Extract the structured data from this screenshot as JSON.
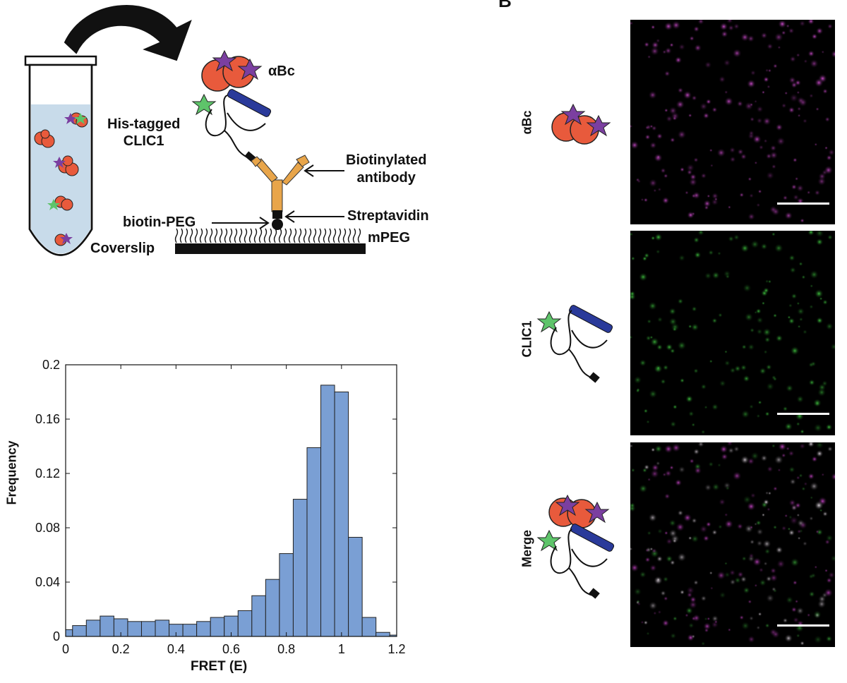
{
  "panel_letter": "B",
  "schematic": {
    "labels": {
      "alpha_bc": "αBc",
      "his_tagged_line1": "His-tagged",
      "his_tagged_line2": "CLIC1",
      "biotinylated_line1": "Biotinylated",
      "biotinylated_line2": "antibody",
      "streptavidin": "Streptavidin",
      "biotin_peg": "biotin-PEG",
      "mpeg": "mPEG",
      "coverslip": "Coverslip"
    }
  },
  "images": {
    "row_labels": [
      "αBc",
      "CLIC1",
      "Merge"
    ],
    "colors": {
      "magenta": "#d050d0",
      "green": "#40d040"
    }
  },
  "chart_data": {
    "type": "bar",
    "xlabel": "FRET (E)",
    "ylabel": "Frequency",
    "xlim": [
      0,
      1.2
    ],
    "ylim": [
      0,
      0.2
    ],
    "xticks": [
      "0",
      "0.2",
      "0.4",
      "0.6",
      "0.8",
      "1",
      "1.2"
    ],
    "yticks": [
      "0",
      "0.04",
      "0.08",
      "0.12",
      "0.16",
      "0.2"
    ],
    "bin_width": 0.05,
    "bin_starts": [
      -0.025,
      0.025,
      0.075,
      0.125,
      0.175,
      0.225,
      0.275,
      0.325,
      0.375,
      0.425,
      0.475,
      0.525,
      0.575,
      0.625,
      0.675,
      0.725,
      0.775,
      0.825,
      0.875,
      0.925,
      0.975,
      1.025,
      1.075,
      1.125,
      1.175
    ],
    "values": [
      0.005,
      0.008,
      0.012,
      0.015,
      0.013,
      0.011,
      0.011,
      0.012,
      0.009,
      0.009,
      0.011,
      0.014,
      0.015,
      0.019,
      0.03,
      0.042,
      0.061,
      0.101,
      0.139,
      0.185,
      0.18,
      0.073,
      0.014,
      0.003,
      0.001
    ],
    "bar_color": "#7a9fd4"
  }
}
